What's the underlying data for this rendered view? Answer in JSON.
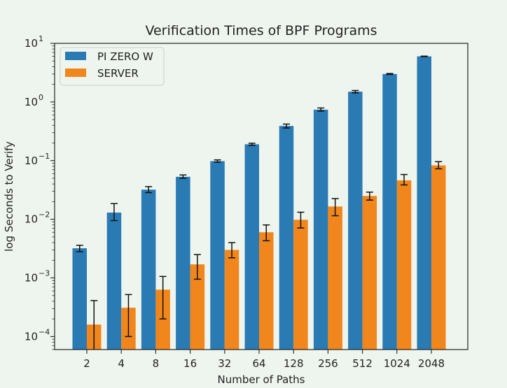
{
  "chart_data": {
    "type": "bar",
    "title": "Verification Times of BPF Programs",
    "xlabel": "Number of Paths",
    "ylabel": "log Seconds to Verify",
    "yscale": "log",
    "ylim": [
      6e-05,
      10
    ],
    "categories": [
      "2",
      "4",
      "8",
      "16",
      "32",
      "64",
      "128",
      "256",
      "512",
      "1024",
      "2048"
    ],
    "yticks": [
      {
        "base": "10",
        "exp": "−4"
      },
      {
        "base": "10",
        "exp": "−3"
      },
      {
        "base": "10",
        "exp": "−2"
      },
      {
        "base": "10",
        "exp": "−1"
      },
      {
        "base": "10",
        "exp": "0"
      },
      {
        "base": "10",
        "exp": "1"
      }
    ],
    "series": [
      {
        "name": "PI ZERO W",
        "color": "#2a7ab3",
        "values": [
          0.0032,
          0.013,
          0.032,
          0.053,
          0.098,
          0.19,
          0.39,
          0.74,
          1.5,
          3.0,
          6.0
        ],
        "err_low": [
          0.0028,
          0.0095,
          0.0285,
          0.05,
          0.094,
          0.182,
          0.36,
          0.7,
          1.43,
          2.95,
          5.95
        ],
        "err_high": [
          0.0036,
          0.0185,
          0.036,
          0.057,
          0.103,
          0.198,
          0.42,
          0.79,
          1.57,
          3.06,
          6.05
        ]
      },
      {
        "name": "SERVER",
        "color": "#f0861c",
        "values": [
          0.00016,
          0.00031,
          0.00063,
          0.0017,
          0.003,
          0.006,
          0.0098,
          0.0165,
          0.025,
          0.046,
          0.083
        ],
        "err_low": [
          5e-05,
          0.0001,
          0.0002,
          0.00095,
          0.0022,
          0.0043,
          0.0071,
          0.0115,
          0.0212,
          0.0385,
          0.0725
        ],
        "err_high": [
          0.00041,
          0.00052,
          0.00106,
          0.0025,
          0.004,
          0.008,
          0.0132,
          0.0225,
          0.029,
          0.058,
          0.096
        ]
      }
    ],
    "legend": "top-left",
    "grid": false
  }
}
